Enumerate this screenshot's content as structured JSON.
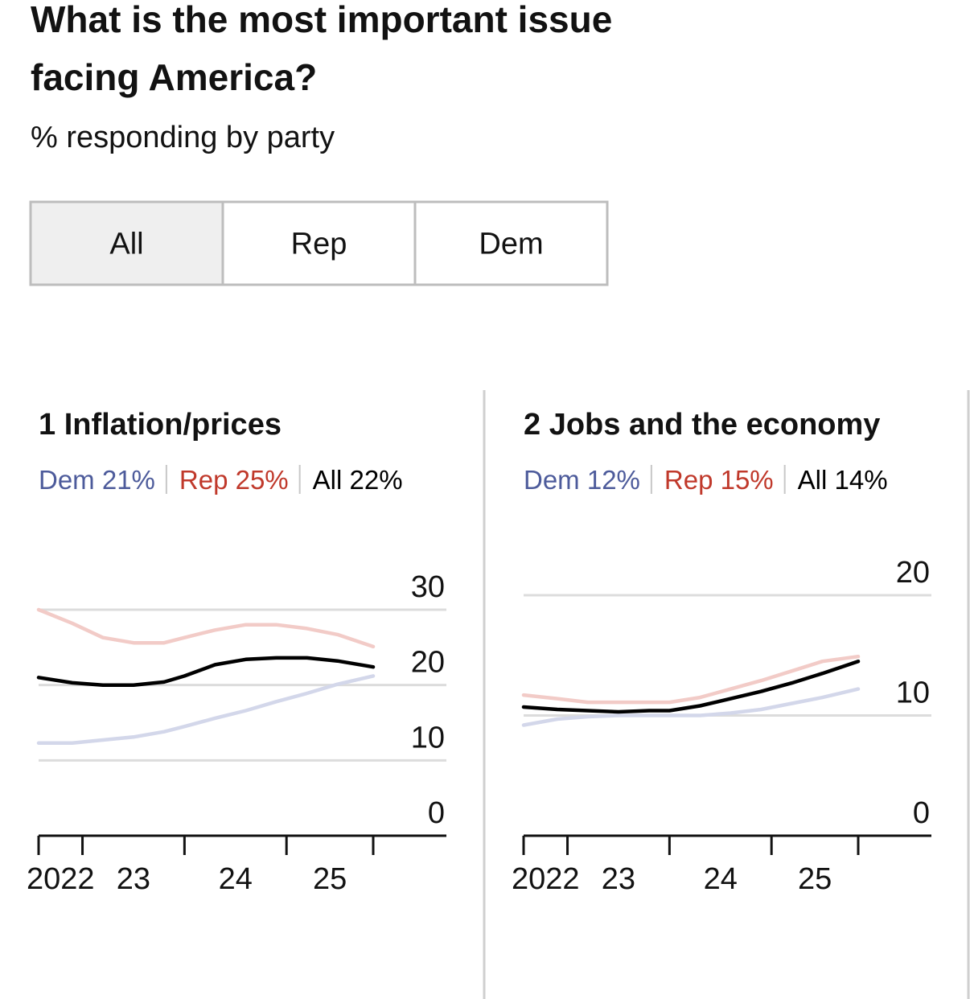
{
  "header": {
    "title_lines": [
      "What is the most important issue",
      "facing America?"
    ],
    "subtitle": "% responding by party"
  },
  "tabs": [
    "All",
    "Rep",
    "Dem"
  ],
  "selected_tab": 0,
  "chart_data": [
    {
      "type": "line",
      "title": "1 Inflation/prices",
      "x": [
        2022.57,
        2022.9,
        2023.2,
        2023.5,
        2023.8,
        2024.0,
        2024.3,
        2024.6,
        2024.9,
        2025.2,
        2025.5,
        2025.85
      ],
      "xlim": [
        2022.57,
        2025.85
      ],
      "xticks": [
        {
          "value": 2022.785,
          "label": "2022"
        },
        {
          "value": 2023.5,
          "label": "23"
        },
        {
          "value": 2024.5,
          "label": "24"
        },
        {
          "value": 2025.425,
          "label": "25"
        }
      ],
      "xtick_marks": [
        2023,
        2024,
        2025
      ],
      "ylim": [
        0,
        30
      ],
      "yticks": [
        0,
        10,
        20,
        30
      ],
      "grid": true,
      "series": [
        {
          "name": "Dem 21%",
          "color": "#d3d7ea",
          "text_color": "#4d5b9b",
          "values": [
            12.3,
            12.3,
            12.7,
            13.1,
            13.8,
            14.5,
            15.6,
            16.6,
            17.8,
            18.9,
            20.1,
            21.2
          ]
        },
        {
          "name": "Rep 25%",
          "color": "#f2cbc7",
          "text_color": "#c0392b",
          "values": [
            30,
            28.2,
            26.3,
            25.6,
            25.6,
            26.3,
            27.3,
            28,
            28,
            27.5,
            26.7,
            25.1
          ]
        },
        {
          "name": "All 22%",
          "color": "#000000",
          "text_color": "#000000",
          "values": [
            21,
            20.3,
            20,
            20,
            20.4,
            21.2,
            22.7,
            23.4,
            23.6,
            23.6,
            23.2,
            22.4
          ]
        }
      ]
    },
    {
      "type": "line",
      "title": "2 Jobs and the economy",
      "x": [
        2022.57,
        2022.9,
        2023.2,
        2023.5,
        2023.8,
        2024.0,
        2024.3,
        2024.6,
        2024.9,
        2025.2,
        2025.5,
        2025.85
      ],
      "xlim": [
        2022.57,
        2025.85
      ],
      "xticks": [
        {
          "value": 2022.785,
          "label": "2022"
        },
        {
          "value": 2023.5,
          "label": "23"
        },
        {
          "value": 2024.5,
          "label": "24"
        },
        {
          "value": 2025.425,
          "label": "25"
        }
      ],
      "xtick_marks": [
        2023,
        2024,
        2025
      ],
      "ylim": [
        0,
        20
      ],
      "yticks": [
        0,
        10,
        20
      ],
      "grid": true,
      "series": [
        {
          "name": "Dem 12%",
          "color": "#d3d7ea",
          "text_color": "#4d5b9b",
          "values": [
            9.2,
            9.7,
            9.9,
            10,
            10,
            10,
            10,
            10.2,
            10.5,
            11,
            11.5,
            12.2
          ]
        },
        {
          "name": "Rep 15%",
          "color": "#f2cbc7",
          "text_color": "#c0392b",
          "values": [
            11.7,
            11.4,
            11.1,
            11.1,
            11.1,
            11.1,
            11.5,
            12.2,
            12.9,
            13.7,
            14.5,
            14.9
          ]
        },
        {
          "name": "All 14%",
          "color": "#000000",
          "text_color": "#000000",
          "values": [
            10.7,
            10.5,
            10.4,
            10.3,
            10.4,
            10.4,
            10.8,
            11.4,
            12,
            12.7,
            13.5,
            14.5
          ]
        }
      ]
    }
  ]
}
